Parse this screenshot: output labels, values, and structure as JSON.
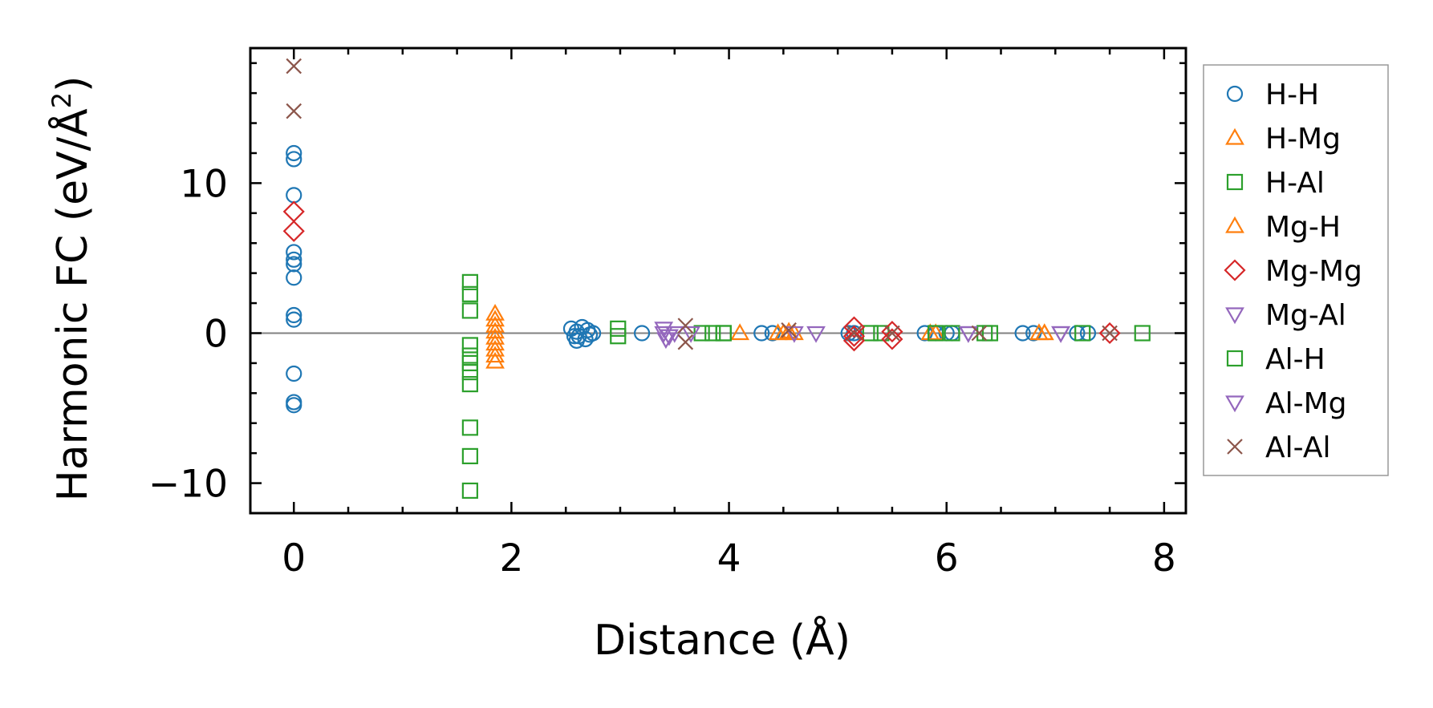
{
  "chart_data": {
    "type": "scatter",
    "title": "",
    "xlabel": "Distance (Å)",
    "ylabel_main": "Harmonic FC (eV/Å",
    "ylabel_sup": "2",
    "ylabel_end": ")",
    "xlim": [
      -0.4,
      8.2
    ],
    "ylim": [
      -12,
      19
    ],
    "xticks": [
      0,
      2,
      4,
      6,
      8
    ],
    "xtick_labels": [
      "0",
      "2",
      "4",
      "6",
      "8"
    ],
    "yticks": [
      -10,
      0,
      10
    ],
    "ytick_labels": [
      "−10",
      "0",
      "10"
    ],
    "reference_line_y": 0,
    "legend_position": "outside right",
    "series": [
      {
        "name": "H-H",
        "marker": "circle",
        "color": "#1f77b4",
        "points": [
          [
            0,
            12
          ],
          [
            0,
            11.6
          ],
          [
            0,
            9.2
          ],
          [
            0,
            5.4
          ],
          [
            0,
            4.9
          ],
          [
            0,
            4.6
          ],
          [
            0,
            3.7
          ],
          [
            0,
            1.2
          ],
          [
            0,
            0.9
          ],
          [
            0,
            -2.7
          ],
          [
            0,
            -4.6
          ],
          [
            0,
            -4.8
          ],
          [
            2.55,
            0.3
          ],
          [
            2.6,
            0.1
          ],
          [
            2.62,
            -0.2
          ],
          [
            2.65,
            0.4
          ],
          [
            2.68,
            -0.4
          ],
          [
            2.7,
            0.2
          ],
          [
            2.72,
            -0.1
          ],
          [
            2.6,
            -0.5
          ],
          [
            2.75,
            0.0
          ],
          [
            2.58,
            -0.2
          ],
          [
            3.2,
            0
          ],
          [
            4.3,
            0
          ],
          [
            4.4,
            0
          ],
          [
            5.1,
            0
          ],
          [
            5.15,
            0
          ],
          [
            5.8,
            0
          ],
          [
            5.9,
            0
          ],
          [
            6.0,
            0
          ],
          [
            6.05,
            0
          ],
          [
            6.7,
            0
          ],
          [
            6.8,
            0
          ],
          [
            7.2,
            0
          ],
          [
            7.3,
            0
          ]
        ]
      },
      {
        "name": "H-Mg",
        "marker": "triangle-up",
        "color": "#ff7f0e",
        "points": [
          [
            1.85,
            1.3
          ],
          [
            1.85,
            0.9
          ],
          [
            1.85,
            0.5
          ],
          [
            1.85,
            0.1
          ],
          [
            1.85,
            -0.3
          ],
          [
            1.85,
            -0.7
          ],
          [
            1.85,
            -1.1
          ],
          [
            1.85,
            -1.5
          ],
          [
            1.85,
            -1.9
          ],
          [
            4.1,
            0
          ],
          [
            4.5,
            0
          ],
          [
            4.55,
            0.1
          ],
          [
            5.9,
            0
          ],
          [
            6.85,
            0
          ],
          [
            6.9,
            0
          ]
        ]
      },
      {
        "name": "H-Al",
        "marker": "square",
        "color": "#2ca02c",
        "points": [
          [
            1.62,
            3.4
          ],
          [
            1.62,
            2.6
          ],
          [
            1.62,
            1.5
          ],
          [
            1.62,
            -0.8
          ],
          [
            1.62,
            -1.5
          ],
          [
            1.62,
            -2.0
          ],
          [
            1.62,
            -2.6
          ],
          [
            1.62,
            -3.4
          ],
          [
            1.62,
            -6.3
          ],
          [
            1.62,
            -8.2
          ],
          [
            1.62,
            -10.5
          ],
          [
            3.75,
            0
          ],
          [
            3.85,
            0
          ],
          [
            3.95,
            0
          ],
          [
            5.3,
            0
          ],
          [
            5.4,
            0
          ],
          [
            6.05,
            0
          ],
          [
            6.4,
            0
          ],
          [
            7.25,
            0
          ],
          [
            7.8,
            0
          ]
        ]
      },
      {
        "name": "Mg-H",
        "marker": "triangle-up",
        "color": "#ff7f0e",
        "points": [
          [
            4.45,
            0
          ],
          [
            4.6,
            0
          ],
          [
            5.85,
            0
          ],
          [
            6.9,
            0
          ]
        ]
      },
      {
        "name": "Mg-Mg",
        "marker": "diamond",
        "color": "#d62728",
        "points": [
          [
            0,
            8.1
          ],
          [
            0,
            6.8
          ],
          [
            5.15,
            0.4
          ],
          [
            5.15,
            -0.2
          ],
          [
            5.15,
            -0.5
          ],
          [
            5.5,
            0.1
          ],
          [
            5.5,
            -0.4
          ],
          [
            7.5,
            0
          ]
        ]
      },
      {
        "name": "Mg-Al",
        "marker": "triangle-down",
        "color": "#9467bd",
        "points": [
          [
            3.4,
            0.3
          ],
          [
            3.45,
            -0.2
          ],
          [
            3.5,
            0
          ],
          [
            3.65,
            0
          ],
          [
            4.8,
            0
          ],
          [
            6.2,
            0
          ],
          [
            7.05,
            0
          ]
        ]
      },
      {
        "name": "Al-H",
        "marker": "square",
        "color": "#2ca02c",
        "points": [
          [
            2.98,
            0.3
          ],
          [
            2.98,
            -0.2
          ],
          [
            3.95,
            0
          ],
          [
            5.9,
            0
          ],
          [
            6.35,
            0
          ]
        ]
      },
      {
        "name": "Al-Mg",
        "marker": "triangle-down",
        "color": "#9467bd",
        "points": [
          [
            3.4,
            0
          ],
          [
            3.42,
            -0.4
          ],
          [
            4.6,
            0
          ],
          [
            6.2,
            0
          ],
          [
            7.05,
            0
          ]
        ]
      },
      {
        "name": "Al-Al",
        "marker": "x",
        "color": "#8c564b",
        "points": [
          [
            0,
            17.8
          ],
          [
            0,
            14.8
          ],
          [
            3.6,
            0.5
          ],
          [
            3.6,
            -0.6
          ],
          [
            4.55,
            0.2
          ],
          [
            5.15,
            0
          ],
          [
            5.5,
            0
          ],
          [
            6.3,
            0
          ],
          [
            7.5,
            0
          ]
        ]
      }
    ]
  }
}
